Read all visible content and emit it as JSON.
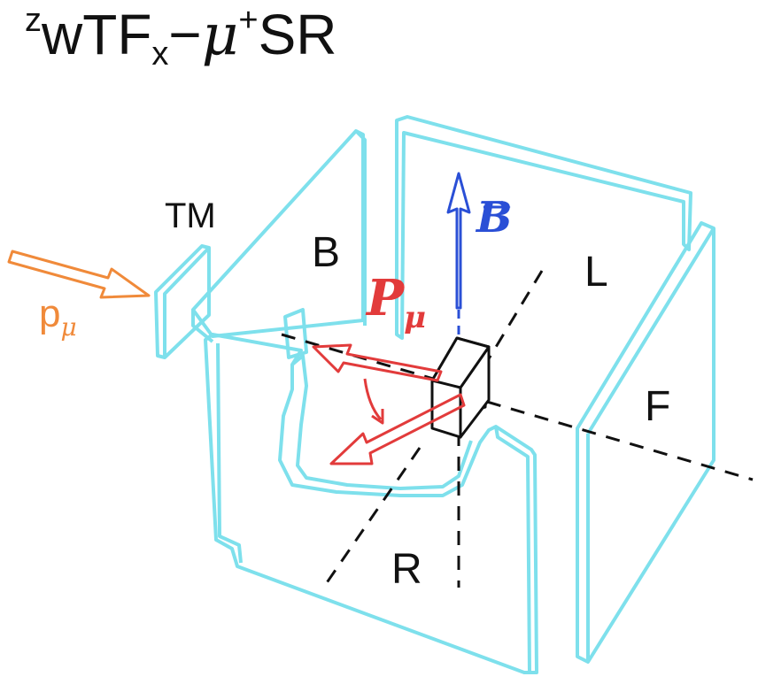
{
  "title": {
    "sup_z": "z",
    "part1": "wTF",
    "sub_x": "x",
    "dash": "−",
    "mu": "μ",
    "sup_plus": "+",
    "part2": "SR"
  },
  "labels": {
    "tm": "TM",
    "b": "B",
    "l": "L",
    "f": "F",
    "r": "R",
    "p_mu_spin": "P",
    "p_mu_spin_sub": "μ",
    "p_mu_beam": "p",
    "p_mu_beam_sub": "μ",
    "b_field": "B"
  },
  "colors": {
    "detector": "#7ee0ec",
    "beam": "#f08a3a",
    "spin": "#e23b3b",
    "field": "#2a4fd6",
    "axes": "#111111"
  }
}
